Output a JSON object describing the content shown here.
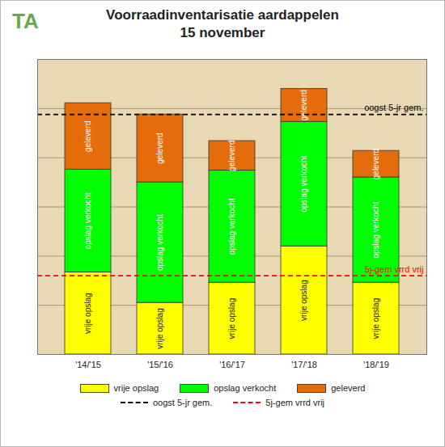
{
  "chart_data": {
    "type": "bar",
    "title": "Voorraadinventarisatie aardappelen",
    "subtitle": "15 november",
    "logo": "TA",
    "categories": [
      "'14/'15",
      "'15/'16",
      "'16/'17",
      "'17/'18",
      "'18/'19"
    ],
    "stacked": true,
    "series": [
      {
        "name": "vrije opslag",
        "color": "#ffff00",
        "values": [
          1.67,
          1.05,
          1.46,
          2.2,
          1.46
        ]
      },
      {
        "name": "opslag verkocht",
        "color": "#00ff00",
        "values": [
          2.09,
          2.45,
          2.28,
          2.53,
          2.14
        ]
      },
      {
        "name": "geleverd",
        "color": "#e46c0a",
        "values": [
          1.35,
          1.38,
          0.6,
          0.67,
          0.54
        ]
      }
    ],
    "reference_lines": [
      {
        "name": "oogst 5-jr gem.",
        "value": 4.88,
        "color": "#000000",
        "line_style": "dashed"
      },
      {
        "name": "5j-gem vrrd vrij",
        "value": 1.6,
        "color": "#ff0000",
        "line_style": "dashed"
      }
    ],
    "ylim": [
      0,
      6
    ],
    "yticks": [
      0,
      1,
      2,
      3,
      4,
      5,
      6
    ],
    "grid": true,
    "tick_labels": "x",
    "legend": "bottom"
  }
}
